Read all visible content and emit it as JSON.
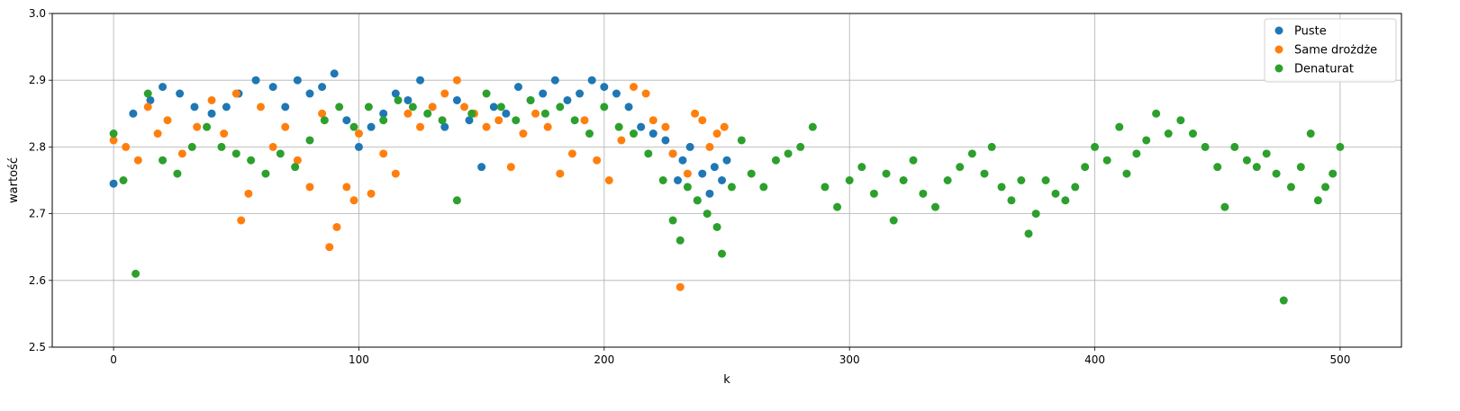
{
  "chart_data": {
    "type": "scatter",
    "title": "",
    "xlabel": "k",
    "ylabel": "wartość",
    "xlim": [
      -25,
      525
    ],
    "ylim": [
      2.5,
      3.0
    ],
    "xticks": [
      0,
      100,
      200,
      300,
      400,
      500
    ],
    "xtick_labels": [
      "0",
      "100",
      "200",
      "300",
      "400",
      "500"
    ],
    "yticks": [
      2.5,
      2.6,
      2.7,
      2.8,
      2.9,
      3.0
    ],
    "ytick_labels": [
      "2.5",
      "2.6",
      "2.7",
      "2.8",
      "2.9",
      "3.0"
    ],
    "grid": true,
    "legend_position": "top-right",
    "series": [
      {
        "name": "Puste",
        "color": "#1f77b4",
        "x": [
          0,
          8,
          15,
          20,
          27,
          33,
          40,
          46,
          51,
          58,
          65,
          70,
          75,
          80,
          85,
          90,
          95,
          100,
          105,
          110,
          115,
          120,
          125,
          130,
          135,
          140,
          145,
          150,
          155,
          160,
          165,
          170,
          175,
          180,
          185,
          190,
          195,
          200,
          205,
          210,
          215,
          220,
          225,
          228,
          230,
          232,
          235,
          238,
          240,
          243,
          245,
          248,
          250
        ],
        "y": [
          2.745,
          2.85,
          2.87,
          2.89,
          2.88,
          2.86,
          2.85,
          2.86,
          2.88,
          2.9,
          2.89,
          2.86,
          2.9,
          2.88,
          2.89,
          2.91,
          2.84,
          2.8,
          2.83,
          2.85,
          2.88,
          2.87,
          2.9,
          2.86,
          2.83,
          2.87,
          2.84,
          2.77,
          2.86,
          2.85,
          2.89,
          2.87,
          2.88,
          2.9,
          2.87,
          2.88,
          2.9,
          2.89,
          2.88,
          2.86,
          2.83,
          2.82,
          2.81,
          2.79,
          2.75,
          2.78,
          2.8,
          2.72,
          2.76,
          2.73,
          2.77,
          2.75,
          2.78
        ]
      },
      {
        "name": "Same drożdże",
        "color": "#ff7f0e",
        "x": [
          0,
          5,
          10,
          14,
          18,
          22,
          28,
          34,
          40,
          45,
          50,
          52,
          55,
          60,
          65,
          70,
          75,
          80,
          85,
          88,
          91,
          95,
          98,
          100,
          105,
          110,
          115,
          120,
          125,
          130,
          135,
          140,
          143,
          147,
          152,
          157,
          162,
          167,
          172,
          177,
          182,
          187,
          192,
          197,
          202,
          207,
          212,
          217,
          220,
          225,
          228,
          231,
          234,
          237,
          240,
          243,
          246,
          249
        ],
        "y": [
          2.81,
          2.8,
          2.78,
          2.86,
          2.82,
          2.84,
          2.79,
          2.83,
          2.87,
          2.82,
          2.88,
          2.69,
          2.73,
          2.86,
          2.8,
          2.83,
          2.78,
          2.74,
          2.85,
          2.65,
          2.68,
          2.74,
          2.72,
          2.82,
          2.73,
          2.79,
          2.76,
          2.85,
          2.83,
          2.86,
          2.88,
          2.9,
          2.86,
          2.85,
          2.83,
          2.84,
          2.77,
          2.82,
          2.85,
          2.83,
          2.76,
          2.79,
          2.84,
          2.78,
          2.75,
          2.81,
          2.89,
          2.88,
          2.84,
          2.83,
          2.79,
          2.59,
          2.76,
          2.85,
          2.84,
          2.8,
          2.82,
          2.83
        ]
      },
      {
        "name": "Denaturat",
        "color": "#2ca02c",
        "x": [
          0,
          4,
          9,
          14,
          20,
          26,
          32,
          38,
          44,
          50,
          56,
          62,
          68,
          74,
          80,
          86,
          92,
          98,
          104,
          110,
          116,
          122,
          128,
          134,
          140,
          146,
          152,
          158,
          164,
          170,
          176,
          182,
          188,
          194,
          200,
          206,
          212,
          218,
          224,
          228,
          231,
          234,
          238,
          242,
          246,
          248,
          252,
          256,
          260,
          265,
          270,
          275,
          280,
          285,
          290,
          295,
          300,
          305,
          310,
          315,
          318,
          322,
          326,
          330,
          335,
          340,
          345,
          350,
          355,
          358,
          362,
          366,
          370,
          373,
          376,
          380,
          384,
          388,
          392,
          396,
          400,
          405,
          410,
          413,
          417,
          421,
          425,
          430,
          435,
          440,
          445,
          450,
          453,
          457,
          462,
          466,
          470,
          474,
          477,
          480,
          484,
          488,
          491,
          494,
          497,
          500
        ],
        "y": [
          2.82,
          2.75,
          2.61,
          2.88,
          2.78,
          2.76,
          2.8,
          2.83,
          2.8,
          2.79,
          2.78,
          2.76,
          2.79,
          2.77,
          2.81,
          2.84,
          2.86,
          2.83,
          2.86,
          2.84,
          2.87,
          2.86,
          2.85,
          2.84,
          2.72,
          2.85,
          2.88,
          2.86,
          2.84,
          2.87,
          2.85,
          2.86,
          2.84,
          2.82,
          2.86,
          2.83,
          2.82,
          2.79,
          2.75,
          2.69,
          2.66,
          2.74,
          2.72,
          2.7,
          2.68,
          2.64,
          2.74,
          2.81,
          2.76,
          2.74,
          2.78,
          2.79,
          2.8,
          2.83,
          2.74,
          2.71,
          2.75,
          2.77,
          2.73,
          2.76,
          2.69,
          2.75,
          2.78,
          2.73,
          2.71,
          2.75,
          2.77,
          2.79,
          2.76,
          2.8,
          2.74,
          2.72,
          2.75,
          2.67,
          2.7,
          2.75,
          2.73,
          2.72,
          2.74,
          2.77,
          2.8,
          2.78,
          2.83,
          2.76,
          2.79,
          2.81,
          2.85,
          2.82,
          2.84,
          2.82,
          2.8,
          2.77,
          2.71,
          2.8,
          2.78,
          2.77,
          2.79,
          2.76,
          2.57,
          2.74,
          2.77,
          2.82,
          2.72,
          2.74,
          2.76,
          2.8
        ]
      }
    ]
  }
}
